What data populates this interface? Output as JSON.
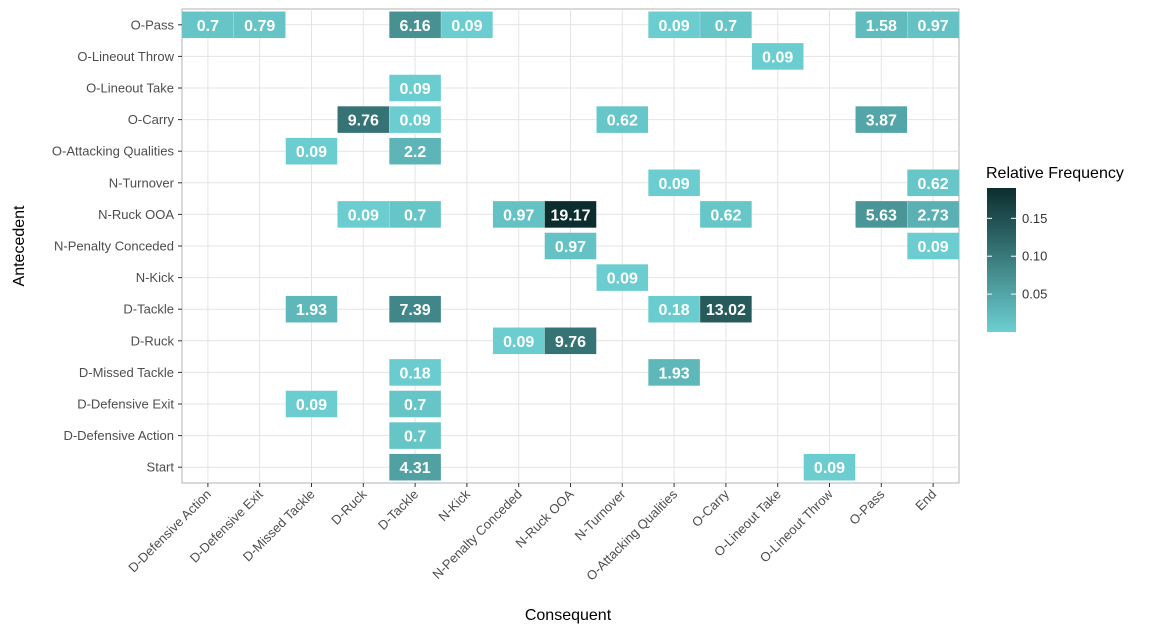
{
  "chart_data": {
    "type": "heatmap",
    "xlabel": "Consequent",
    "ylabel": "Antecedent",
    "x_categories": [
      "D-Defensive Action",
      "D-Defensive Exit",
      "D-Missed Tackle",
      "D-Ruck",
      "D-Tackle",
      "N-Kick",
      "N-Penalty Conceded",
      "N-Ruck OOA",
      "N-Turnover",
      "O-Attacking Qualities",
      "O-Carry",
      "O-Lineout Take",
      "O-Lineout Throw",
      "O-Pass",
      "End"
    ],
    "y_categories": [
      "O-Pass",
      "O-Lineout Throw",
      "O-Lineout Take",
      "O-Carry",
      "O-Attacking Qualities",
      "N-Turnover",
      "N-Ruck OOA",
      "N-Penalty Conceded",
      "N-Kick",
      "D-Tackle",
      "D-Ruck",
      "D-Missed Tackle",
      "D-Defensive Exit",
      "D-Defensive Action",
      "Start"
    ],
    "cells": [
      {
        "x": "D-Defensive Action",
        "y": "O-Pass",
        "label": "0.7",
        "value": 0.007
      },
      {
        "x": "D-Defensive Exit",
        "y": "O-Pass",
        "label": "0.79",
        "value": 0.0079
      },
      {
        "x": "D-Tackle",
        "y": "O-Pass",
        "label": "6.16",
        "value": 0.0616
      },
      {
        "x": "N-Kick",
        "y": "O-Pass",
        "label": "0.09",
        "value": 0.0009
      },
      {
        "x": "O-Attacking Qualities",
        "y": "O-Pass",
        "label": "0.09",
        "value": 0.0009
      },
      {
        "x": "O-Carry",
        "y": "O-Pass",
        "label": "0.7",
        "value": 0.007
      },
      {
        "x": "O-Pass",
        "y": "O-Pass",
        "label": "1.58",
        "value": 0.0158
      },
      {
        "x": "End",
        "y": "O-Pass",
        "label": "0.97",
        "value": 0.0097
      },
      {
        "x": "O-Lineout Take",
        "y": "O-Lineout Throw",
        "label": "0.09",
        "value": 0.0009
      },
      {
        "x": "D-Tackle",
        "y": "O-Lineout Take",
        "label": "0.09",
        "value": 0.0009
      },
      {
        "x": "D-Ruck",
        "y": "O-Carry",
        "label": "9.76",
        "value": 0.0976
      },
      {
        "x": "D-Tackle",
        "y": "O-Carry",
        "label": "0.09",
        "value": 0.0009
      },
      {
        "x": "N-Turnover",
        "y": "O-Carry",
        "label": "0.62",
        "value": 0.0062
      },
      {
        "x": "O-Pass",
        "y": "O-Carry",
        "label": "3.87",
        "value": 0.0387
      },
      {
        "x": "D-Missed Tackle",
        "y": "O-Attacking Qualities",
        "label": "0.09",
        "value": 0.0009
      },
      {
        "x": "D-Tackle",
        "y": "O-Attacking Qualities",
        "label": "2.2",
        "value": 0.022
      },
      {
        "x": "O-Attacking Qualities",
        "y": "N-Turnover",
        "label": "0.09",
        "value": 0.0009
      },
      {
        "x": "End",
        "y": "N-Turnover",
        "label": "0.62",
        "value": 0.0062
      },
      {
        "x": "D-Ruck",
        "y": "N-Ruck OOA",
        "label": "0.09",
        "value": 0.0009
      },
      {
        "x": "D-Tackle",
        "y": "N-Ruck OOA",
        "label": "0.7",
        "value": 0.007
      },
      {
        "x": "N-Penalty Conceded",
        "y": "N-Ruck OOA",
        "label": "0.97",
        "value": 0.0097
      },
      {
        "x": "N-Ruck OOA",
        "y": "N-Ruck OOA",
        "label": "19.17",
        "value": 0.1917
      },
      {
        "x": "O-Carry",
        "y": "N-Ruck OOA",
        "label": "0.62",
        "value": 0.0062
      },
      {
        "x": "O-Pass",
        "y": "N-Ruck OOA",
        "label": "5.63",
        "value": 0.0563
      },
      {
        "x": "End",
        "y": "N-Ruck OOA",
        "label": "2.73",
        "value": 0.0273
      },
      {
        "x": "N-Ruck OOA",
        "y": "N-Penalty Conceded",
        "label": "0.97",
        "value": 0.0097
      },
      {
        "x": "End",
        "y": "N-Penalty Conceded",
        "label": "0.09",
        "value": 0.0009
      },
      {
        "x": "N-Turnover",
        "y": "N-Kick",
        "label": "0.09",
        "value": 0.0009
      },
      {
        "x": "D-Missed Tackle",
        "y": "D-Tackle",
        "label": "1.93",
        "value": 0.0193
      },
      {
        "x": "D-Tackle",
        "y": "D-Tackle",
        "label": "7.39",
        "value": 0.0739
      },
      {
        "x": "O-Attacking Qualities",
        "y": "D-Tackle",
        "label": "0.18",
        "value": 0.0018
      },
      {
        "x": "O-Carry",
        "y": "D-Tackle",
        "label": "13.02",
        "value": 0.1302
      },
      {
        "x": "N-Penalty Conceded",
        "y": "D-Ruck",
        "label": "0.09",
        "value": 0.0009
      },
      {
        "x": "N-Ruck OOA",
        "y": "D-Ruck",
        "label": "9.76",
        "value": 0.0976
      },
      {
        "x": "D-Tackle",
        "y": "D-Missed Tackle",
        "label": "0.18",
        "value": 0.0018
      },
      {
        "x": "O-Attacking Qualities",
        "y": "D-Missed Tackle",
        "label": "1.93",
        "value": 0.0193
      },
      {
        "x": "D-Missed Tackle",
        "y": "D-Defensive Exit",
        "label": "0.09",
        "value": 0.0009
      },
      {
        "x": "D-Tackle",
        "y": "D-Defensive Exit",
        "label": "0.7",
        "value": 0.007
      },
      {
        "x": "D-Tackle",
        "y": "D-Defensive Action",
        "label": "0.7",
        "value": 0.007
      },
      {
        "x": "D-Tackle",
        "y": "Start",
        "label": "4.31",
        "value": 0.0431
      },
      {
        "x": "O-Lineout Throw",
        "y": "Start",
        "label": "0.09",
        "value": 0.0009
      }
    ],
    "legend": {
      "title": "Relative Frequency",
      "ticks": [
        0.05,
        0.1,
        0.15
      ],
      "tick_labels": [
        "0.05",
        "0.10",
        "0.15"
      ],
      "range": [
        0,
        0.19
      ],
      "low_color": "#6ccfd1",
      "high_color": "#0c2d2e",
      "placement": "right"
    },
    "grid": true
  }
}
